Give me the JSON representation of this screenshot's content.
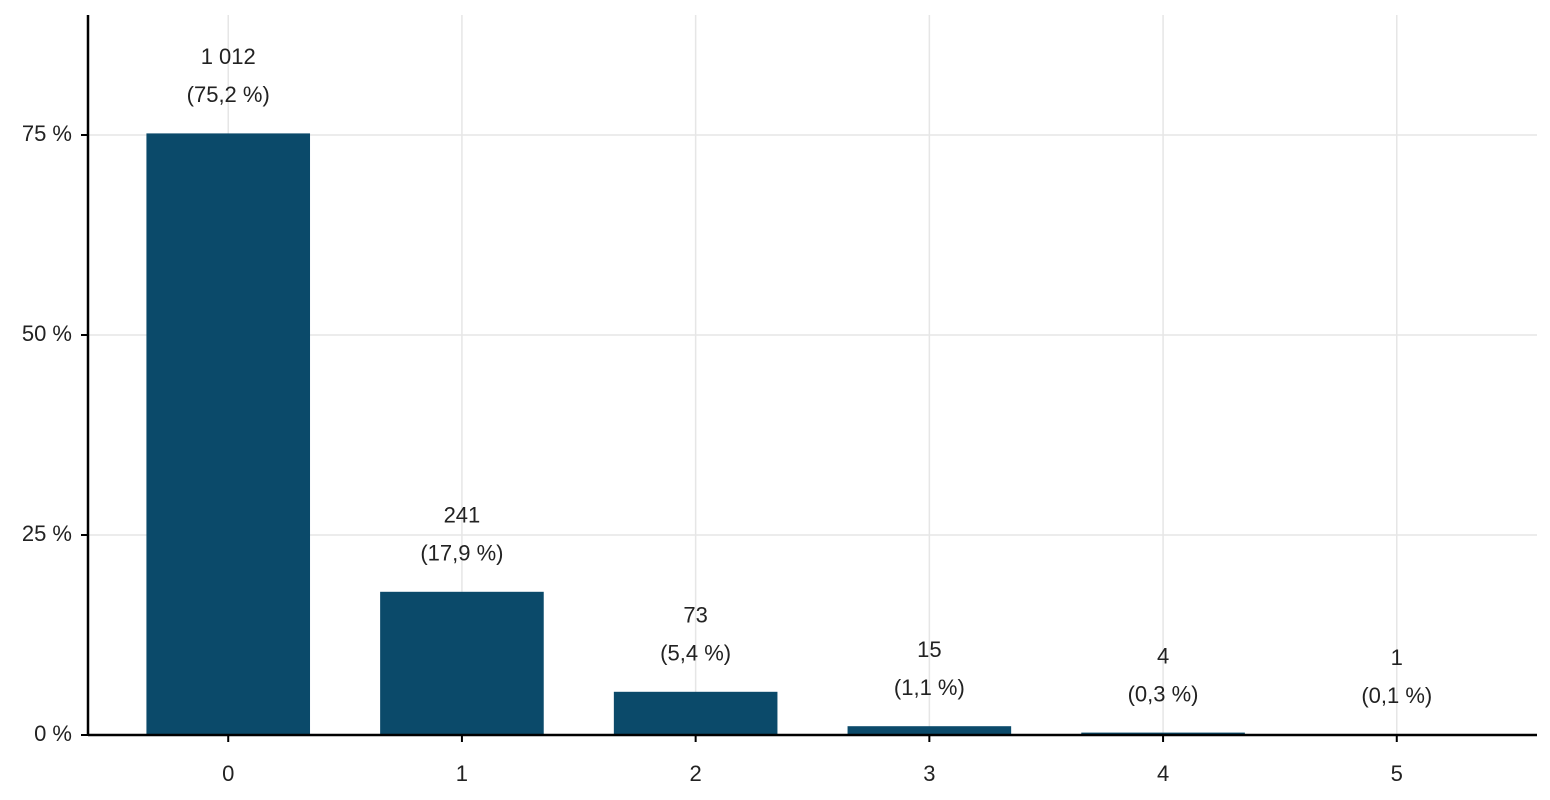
{
  "chart_data": {
    "type": "bar",
    "categories": [
      "0",
      "1",
      "2",
      "3",
      "4",
      "5"
    ],
    "values": [
      75.2,
      17.9,
      5.4,
      1.1,
      0.3,
      0.1
    ],
    "count_labels": [
      "1 012",
      "241",
      "73",
      "15",
      "4",
      "1"
    ],
    "value_labels": [
      "(75,2 %)",
      "(17,9 %)",
      "(5,4 %)",
      "(1,1 %)",
      "(0,3 %)",
      "(0,1 %)"
    ],
    "color": "#0b4a6a",
    "ylim": [
      0,
      90
    ],
    "yticks": [
      {
        "value": 0,
        "label": "0 %"
      },
      {
        "value": 25,
        "label": "25 %"
      },
      {
        "value": 50,
        "label": "50 %"
      },
      {
        "value": 75,
        "label": "75 %"
      }
    ],
    "grid": true
  }
}
